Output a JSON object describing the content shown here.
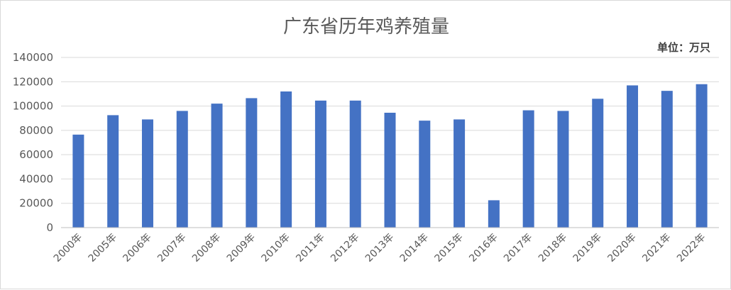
{
  "chart_data": {
    "type": "bar",
    "title": "广东省历年鸡养殖量",
    "unit_label": "单位：万只",
    "categories": [
      "2000年",
      "2005年",
      "2006年",
      "2007年",
      "2008年",
      "2009年",
      "2010年",
      "2011年",
      "2012年",
      "2013年",
      "2014年",
      "2015年",
      "2016年",
      "2017年",
      "2018年",
      "2019年",
      "2020年",
      "2021年",
      "2022年"
    ],
    "values": [
      76500,
      92500,
      89000,
      96000,
      102000,
      106500,
      112000,
      104500,
      104500,
      94500,
      88000,
      89000,
      22500,
      96500,
      96000,
      106000,
      117000,
      112500,
      118000
    ],
    "ylim": [
      0,
      140000
    ],
    "yticks": [
      0,
      20000,
      40000,
      60000,
      80000,
      100000,
      120000,
      140000
    ],
    "grid": true,
    "legend": "none",
    "bar_color": "#4472c4"
  }
}
